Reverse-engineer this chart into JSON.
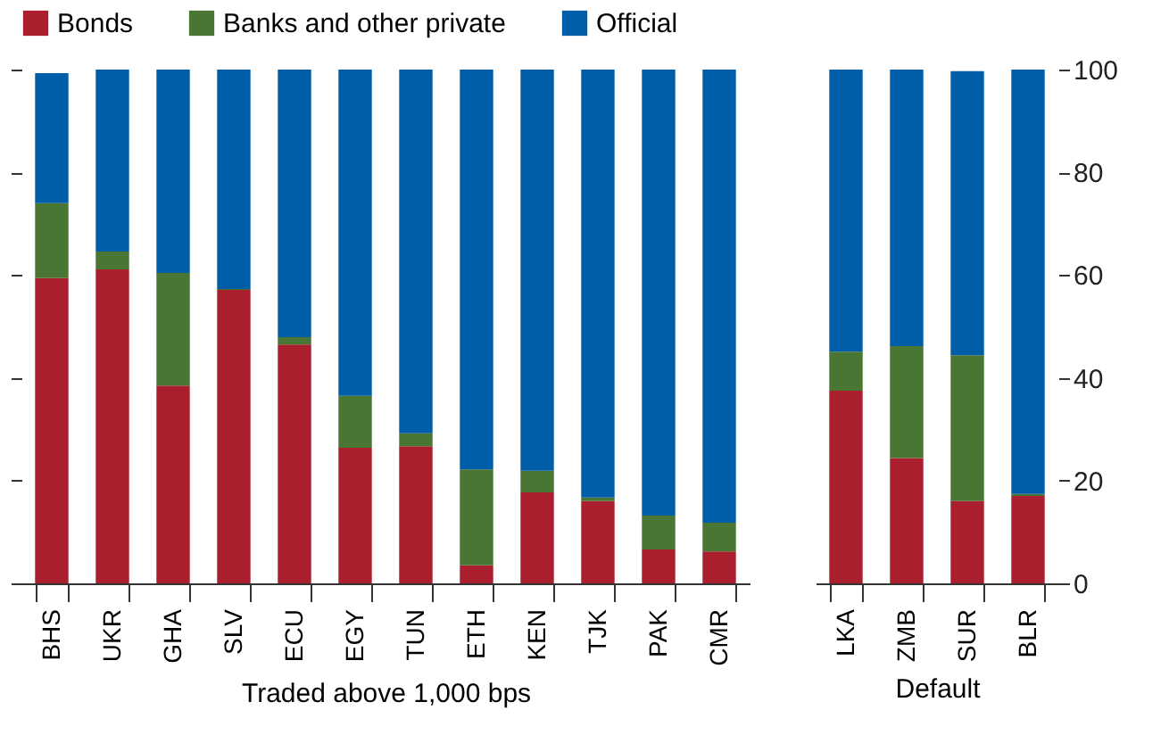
{
  "chart_data": [
    {
      "type": "bar",
      "stacked": true,
      "xlabel": "Traded above 1,000 bps",
      "categories": [
        "BHS",
        "UKR",
        "GHA",
        "SLV",
        "ECU",
        "EGY",
        "TUN",
        "ETH",
        "KEN",
        "TJK",
        "PAK",
        "CMR"
      ],
      "ylim": [
        0,
        100
      ],
      "yticks": [
        0,
        20,
        40,
        60,
        80,
        100
      ],
      "tick_labels": "x",
      "legend": "top",
      "series": [
        {
          "name": "Bonds",
          "color": "#a91f2e",
          "values": [
            59.4,
            61.1,
            38.5,
            57.1,
            46.5,
            26.4,
            26.7,
            3.5,
            17.7,
            16.0,
            6.6,
            6.2
          ]
        },
        {
          "name": "Banks and other private",
          "color": "#4a7634",
          "values": [
            14.6,
            3.5,
            21.9,
            0.2,
            1.4,
            10.1,
            2.5,
            18.7,
            4.2,
            0.7,
            6.6,
            5.6
          ]
        },
        {
          "name": "Official",
          "color": "#005ea8",
          "values": [
            25.3,
            35.4,
            39.6,
            42.7,
            52.1,
            63.5,
            70.8,
            77.8,
            78.1,
            83.3,
            86.8,
            88.2
          ]
        }
      ]
    },
    {
      "type": "bar",
      "stacked": true,
      "xlabel": "Default",
      "categories": [
        "LKA",
        "ZMB",
        "SUR",
        "BLR"
      ],
      "ylim": [
        0,
        100
      ],
      "yticks": [
        0,
        20,
        40,
        60,
        80,
        100
      ],
      "series": [
        {
          "color": "#a91f2e",
          "values": [
            37.5,
            24.4,
            16.0,
            17.0
          ]
        },
        {
          "color": "#4a7634",
          "values": [
            7.6,
            21.8,
            28.4,
            0.4
          ]
        },
        {
          "color": "#005ea8",
          "values": [
            54.9,
            53.8,
            55.3,
            82.6
          ]
        }
      ]
    }
  ]
}
